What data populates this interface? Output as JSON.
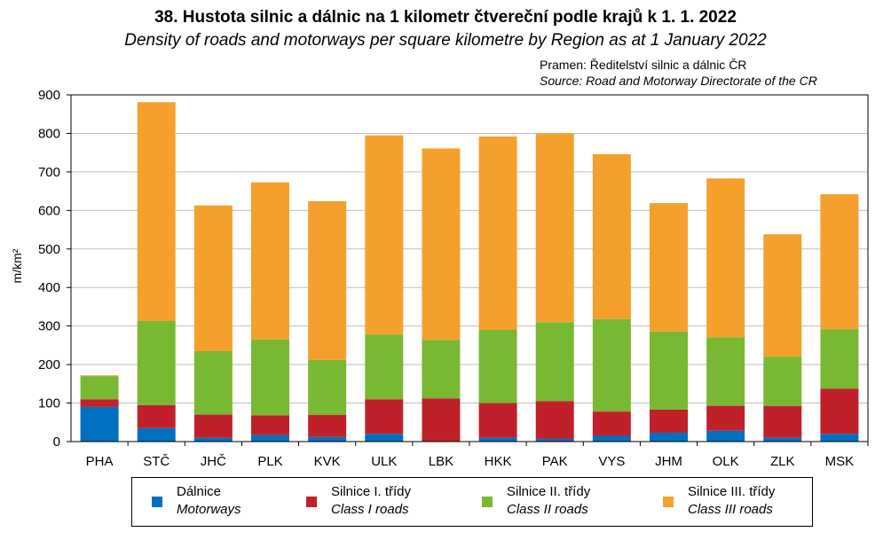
{
  "title": "38. Hustota silnic a dálnic na 1 kilometr čtvereční podle krajů k 1. 1. 2022",
  "subtitle": "Density of roads and motorways per square kilometre by Region as at 1 January 2022",
  "source_cz": "Pramen: Ředitelství  silnic a dálnic ČR",
  "source_en": "Source: Road and Motorway Directorate of the CR",
  "chart_data": {
    "type": "bar",
    "stacked": true,
    "categories": [
      "PHA",
      "STČ",
      "JHČ",
      "PLK",
      "KVK",
      "ULK",
      "LBK",
      "HKK",
      "PAK",
      "VYS",
      "JHM",
      "OLK",
      "ZLK",
      "MSK"
    ],
    "ylabel": "m/km²",
    "ylim": [
      0,
      900
    ],
    "yticks": [
      "0",
      "100",
      "200",
      "300",
      "400",
      "500",
      "600",
      "700",
      "800",
      "900"
    ],
    "grid": true,
    "legend_position": "bottom",
    "series": [
      {
        "name": "Dálnice",
        "name_en": "Motorways",
        "color": "#0070C0",
        "values": [
          90,
          35,
          10,
          17,
          12,
          20,
          0,
          10,
          7,
          15,
          23,
          28,
          10,
          20
        ]
      },
      {
        "name": "Silnice I. třídy",
        "name_en": "Class I roads",
        "color": "#C0202A",
        "values": [
          20,
          60,
          60,
          51,
          57,
          90,
          112,
          90,
          98,
          63,
          60,
          65,
          82,
          117
        ]
      },
      {
        "name": "Silnice II. třídy",
        "name_en": "Class II roads",
        "color": "#78B833",
        "values": [
          60,
          218,
          165,
          197,
          143,
          168,
          152,
          190,
          205,
          240,
          203,
          178,
          128,
          155
        ]
      },
      {
        "name": "Silnice III. třídy",
        "name_en": "Class III roads",
        "color": "#F5A02C",
        "values": [
          2,
          568,
          378,
          408,
          412,
          517,
          497,
          502,
          490,
          428,
          333,
          412,
          318,
          350
        ]
      }
    ]
  },
  "legend": [
    {
      "cz": "Dálnice",
      "en": "Motorways",
      "color": "#0070C0"
    },
    {
      "cz": "Silnice I. třídy",
      "en": "Class I roads",
      "color": "#C0202A"
    },
    {
      "cz": "Silnice II. třídy",
      "en": "Class II roads",
      "color": "#78B833"
    },
    {
      "cz": "Silnice III. třídy",
      "en": "Class III roads",
      "color": "#F5A02C"
    }
  ]
}
